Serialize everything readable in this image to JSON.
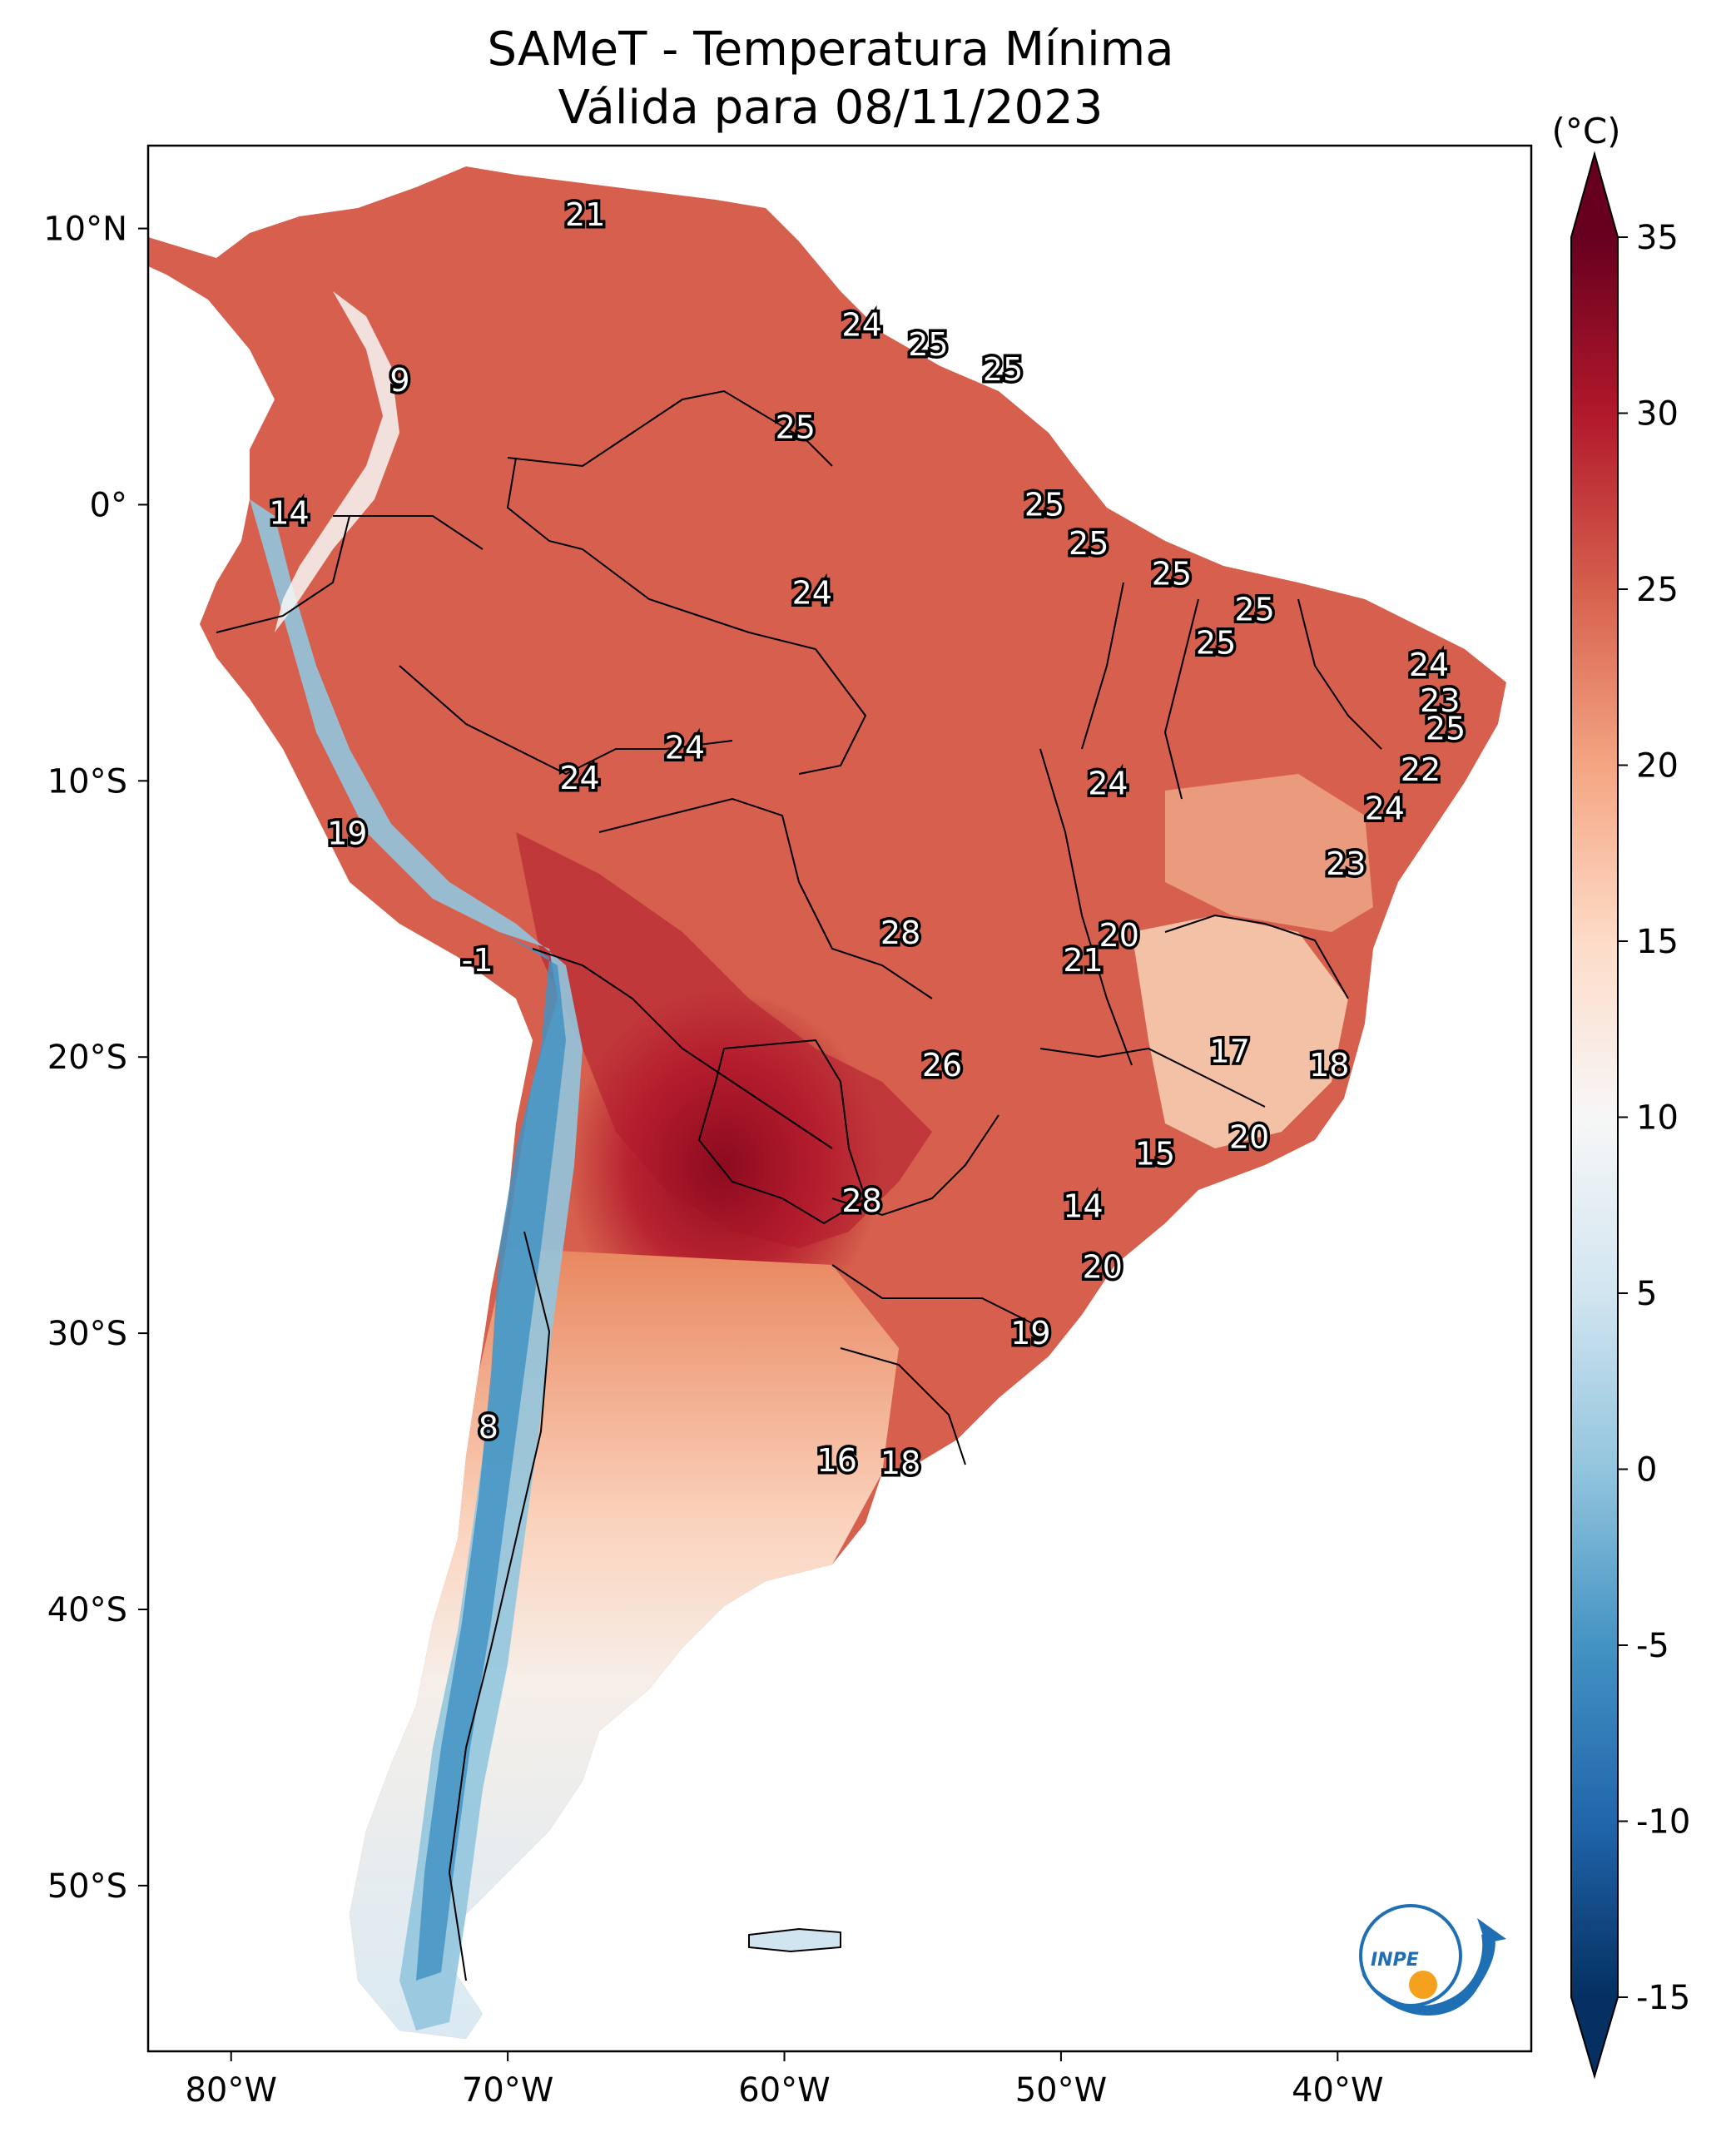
{
  "map": {
    "title_line1": "SAMeT - Temperatura Mínima",
    "title_line2": "Válida para 08/11/2023",
    "lat_ticks": [
      "10°N",
      "0°",
      "10°S",
      "20°S",
      "30°S",
      "40°S",
      "50°S"
    ],
    "lon_ticks": [
      "80°W",
      "70°W",
      "60°W",
      "50°W",
      "40°W"
    ],
    "lat_range": [
      -56,
      13
    ],
    "lon_range": [
      -83,
      -33
    ],
    "colorbar": {
      "unit": "(°C)",
      "ticks": [
        "35",
        "30",
        "25",
        "20",
        "15",
        "10",
        "5",
        "0",
        "-5",
        "-10",
        "-15"
      ],
      "range": [
        -15,
        35
      ],
      "colors_low_to_high": [
        "#053061",
        "#2166ac",
        "#4393c3",
        "#92c5de",
        "#d1e5f0",
        "#f7f7f7",
        "#fddbc7",
        "#f4a582",
        "#d6604d",
        "#b2182b",
        "#67001f"
      ]
    },
    "station_values": [
      {
        "label": "21",
        "lon": -67.2,
        "lat": 10.5
      },
      {
        "label": "9",
        "lon": -73.9,
        "lat": 4.5
      },
      {
        "label": "24",
        "lon": -57.2,
        "lat": 6.5
      },
      {
        "label": "25",
        "lon": -54.8,
        "lat": 5.8
      },
      {
        "label": "25",
        "lon": -52.1,
        "lat": 4.9
      },
      {
        "label": "25",
        "lon": -59.6,
        "lat": 2.8
      },
      {
        "label": "14",
        "lon": -77.9,
        "lat": -0.3
      },
      {
        "label": "25",
        "lon": -50.6,
        "lat": 0.0
      },
      {
        "label": "25",
        "lon": -49.0,
        "lat": -1.4
      },
      {
        "label": "25",
        "lon": -46.0,
        "lat": -2.5
      },
      {
        "label": "24",
        "lon": -59.0,
        "lat": -3.2
      },
      {
        "label": "25",
        "lon": -43.0,
        "lat": -3.8
      },
      {
        "label": "25",
        "lon": -44.4,
        "lat": -5.0
      },
      {
        "label": "24",
        "lon": -36.7,
        "lat": -5.8
      },
      {
        "label": "23",
        "lon": -36.3,
        "lat": -7.1
      },
      {
        "label": "25",
        "lon": -36.1,
        "lat": -8.1
      },
      {
        "label": "24",
        "lon": -63.6,
        "lat": -8.8
      },
      {
        "label": "24",
        "lon": -67.4,
        "lat": -9.9
      },
      {
        "label": "24",
        "lon": -48.3,
        "lat": -10.1
      },
      {
        "label": "22",
        "lon": -37.0,
        "lat": -9.6
      },
      {
        "label": "24",
        "lon": -38.3,
        "lat": -11.0
      },
      {
        "label": "19",
        "lon": -75.8,
        "lat": -11.9
      },
      {
        "label": "23",
        "lon": -39.7,
        "lat": -13.0
      },
      {
        "label": "28",
        "lon": -55.8,
        "lat": -15.5
      },
      {
        "label": "20",
        "lon": -47.9,
        "lat": -15.6
      },
      {
        "label": "21",
        "lon": -49.2,
        "lat": -16.5
      },
      {
        "label": "-1",
        "lon": -71.1,
        "lat": -16.5
      },
      {
        "label": "17",
        "lon": -43.9,
        "lat": -19.8
      },
      {
        "label": "26",
        "lon": -54.3,
        "lat": -20.3
      },
      {
        "label": "18",
        "lon": -40.3,
        "lat": -20.3
      },
      {
        "label": "20",
        "lon": -43.2,
        "lat": -22.9
      },
      {
        "label": "15",
        "lon": -46.6,
        "lat": -23.5
      },
      {
        "label": "28",
        "lon": -57.2,
        "lat": -25.2
      },
      {
        "label": "14",
        "lon": -49.2,
        "lat": -25.4
      },
      {
        "label": "20",
        "lon": -48.5,
        "lat": -27.6
      },
      {
        "label": "19",
        "lon": -51.1,
        "lat": -30.0
      },
      {
        "label": "8",
        "lon": -70.7,
        "lat": -33.4
      },
      {
        "label": "16",
        "lon": -58.1,
        "lat": -34.6
      },
      {
        "label": "18",
        "lon": -55.8,
        "lat": -34.7
      }
    ],
    "logo_text": "INPE"
  }
}
